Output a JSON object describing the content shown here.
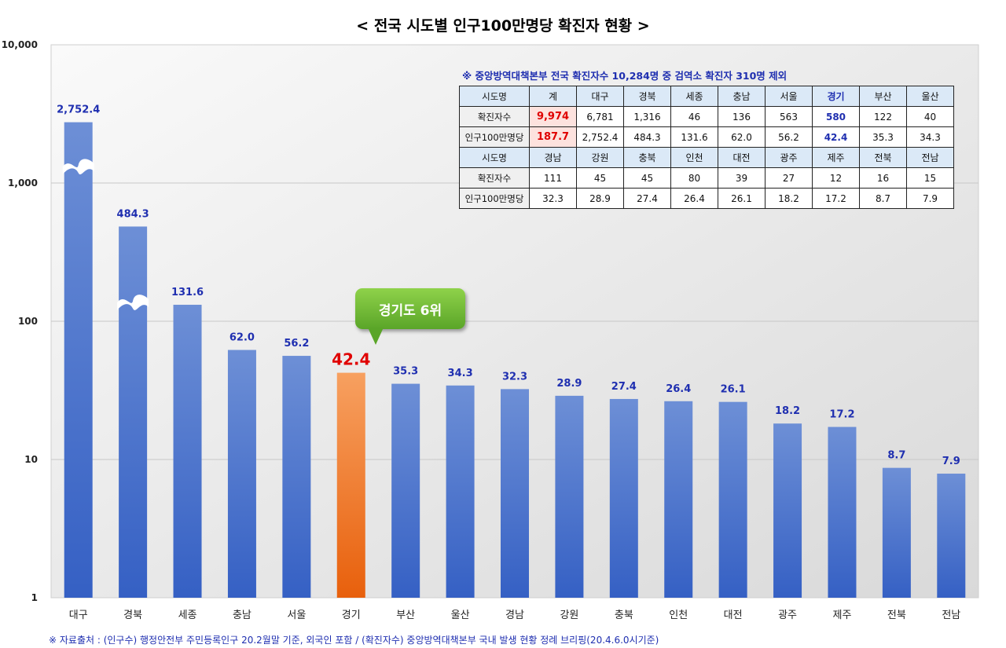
{
  "title": "< 전국 시도별 인구100만명당 확진자 현황 >",
  "source_note": "※ 자료출처 : (인구수) 행정안전부 주민등록인구 20.2월말 기준, 외국인 포함 / (확진자수) 중앙방역대책본부 국내 발생 현황 정례 브리핑(20.4.6.0시기준)",
  "callout": {
    "text": "경기도 6위"
  },
  "colors": {
    "bar": "#3f69c8",
    "bar_top": "#6d8fd6",
    "highlight": "#f07a2a",
    "label": "#1f2fb0",
    "highlight_label": "#e00000",
    "callout": "#6cb934",
    "plot_bg": "#ededed"
  },
  "table": {
    "note": "※ 중앙방역대책본부 전국 확진자수 10,284명 중 검역소 확진자 310명  제외",
    "rows": [
      [
        "시도명",
        "계",
        "대구",
        "경북",
        "세종",
        "충남",
        "서울",
        "경기",
        "부산",
        "울산"
      ],
      [
        "확진자수",
        "9,974",
        "6,781",
        "1,316",
        "46",
        "136",
        "563",
        "580",
        "122",
        "40"
      ],
      [
        "인구100만명당",
        "187.7",
        "2,752.4",
        "484.3",
        "131.6",
        "62.0",
        "56.2",
        "42.4",
        "35.3",
        "34.3"
      ],
      [
        "시도명",
        "경남",
        "강원",
        "충북",
        "인천",
        "대전",
        "광주",
        "제주",
        "전북",
        "전남"
      ],
      [
        "확진자수",
        "111",
        "45",
        "45",
        "80",
        "39",
        "27",
        "12",
        "16",
        "15"
      ],
      [
        "인구100만명당",
        "32.3",
        "28.9",
        "27.4",
        "26.4",
        "26.1",
        "18.2",
        "17.2",
        "8.7",
        "7.9"
      ]
    ]
  },
  "chart_data": {
    "type": "bar",
    "title": "< 전국 시도별 인구100만명당 확진자 현황 >",
    "y_scale": "log",
    "ylim": [
      1,
      10000
    ],
    "y_ticks": [
      {
        "value": 1,
        "label": "1"
      },
      {
        "value": 10,
        "label": "10"
      },
      {
        "value": 100,
        "label": "100"
      },
      {
        "value": 1000,
        "label": "1,000"
      },
      {
        "value": 10000,
        "label": "10,000"
      }
    ],
    "grid": true,
    "highlight": "경기",
    "broken_axis_bars": [
      "대구",
      "경북"
    ],
    "categories": [
      "대구",
      "경북",
      "세종",
      "충남",
      "서울",
      "경기",
      "부산",
      "울산",
      "경남",
      "강원",
      "충북",
      "인천",
      "대전",
      "광주",
      "제주",
      "전북",
      "전남"
    ],
    "values": [
      2752.4,
      484.3,
      131.6,
      62.0,
      56.2,
      42.4,
      35.3,
      34.3,
      32.3,
      28.9,
      27.4,
      26.4,
      26.1,
      18.2,
      17.2,
      8.7,
      7.9
    ],
    "value_labels": [
      "2,752.4",
      "484.3",
      "131.6",
      "62.0",
      "56.2",
      "42.4",
      "35.3",
      "34.3",
      "32.3",
      "28.9",
      "27.4",
      "26.4",
      "26.1",
      "18.2",
      "17.2",
      "8.7",
      "7.9"
    ]
  }
}
